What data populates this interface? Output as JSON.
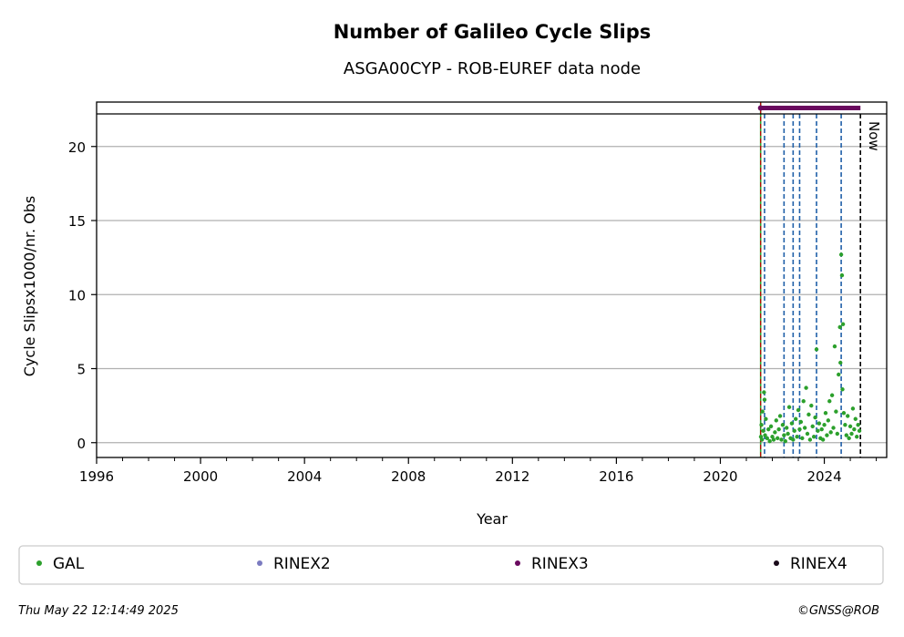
{
  "chart_data": {
    "type": "scatter",
    "title": "Number of Galileo Cycle Slips",
    "subtitle": "ASGA00CYP - ROB-EUREF data node",
    "xlabel": "Year",
    "ylabel": "Cycle Slipsx1000/nr. Obs",
    "xlim": [
      1996,
      2026.4
    ],
    "ylim": [
      -1.0,
      22.2
    ],
    "x_ticks": [
      "1996",
      "2000",
      "2004",
      "2008",
      "2012",
      "2016",
      "2020",
      "2024"
    ],
    "y_ticks": [
      "0",
      "5",
      "10",
      "15",
      "20"
    ],
    "grid": "horizontal",
    "now_label": "Now",
    "now_x": 2025.39,
    "data_start_x": 2021.55,
    "equipment_changes_x": [
      2021.7,
      2022.45,
      2022.8,
      2023.05,
      2023.7,
      2024.65
    ],
    "rinex_bars": [
      {
        "name": "RINEX3",
        "from": 2021.55,
        "to": 2025.39,
        "color": "#6a0a5f"
      }
    ],
    "series": [
      {
        "name": "GAL",
        "color": "#2ca02c",
        "points": [
          [
            2021.56,
            0.4
          ],
          [
            2021.58,
            1.2
          ],
          [
            2021.6,
            0.2
          ],
          [
            2021.62,
            2.1
          ],
          [
            2021.65,
            0.8
          ],
          [
            2021.68,
            3.4
          ],
          [
            2021.7,
            2.9
          ],
          [
            2021.72,
            0.5
          ],
          [
            2021.75,
            1.6
          ],
          [
            2021.8,
            0.3
          ],
          [
            2021.85,
            0.9
          ],
          [
            2021.9,
            0.1
          ],
          [
            2021.95,
            1.1
          ],
          [
            2022.0,
            0.4
          ],
          [
            2022.05,
            0.2
          ],
          [
            2022.1,
            0.7
          ],
          [
            2022.15,
            1.5
          ],
          [
            2022.2,
            0.3
          ],
          [
            2022.25,
            0.9
          ],
          [
            2022.3,
            1.8
          ],
          [
            2022.35,
            0.2
          ],
          [
            2022.4,
            1.2
          ],
          [
            2022.45,
            0.5
          ],
          [
            2022.5,
            0.1
          ],
          [
            2022.55,
            1.0
          ],
          [
            2022.6,
            0.6
          ],
          [
            2022.65,
            2.4
          ],
          [
            2022.7,
            0.3
          ],
          [
            2022.75,
            1.3
          ],
          [
            2022.8,
            0.2
          ],
          [
            2022.85,
            0.8
          ],
          [
            2022.9,
            1.6
          ],
          [
            2022.95,
            0.4
          ],
          [
            2023.0,
            2.2
          ],
          [
            2023.05,
            0.9
          ],
          [
            2023.1,
            1.4
          ],
          [
            2023.15,
            0.3
          ],
          [
            2023.2,
            2.8
          ],
          [
            2023.25,
            1.0
          ],
          [
            2023.3,
            3.7
          ],
          [
            2023.35,
            0.6
          ],
          [
            2023.4,
            1.9
          ],
          [
            2023.45,
            0.2
          ],
          [
            2023.5,
            2.5
          ],
          [
            2023.55,
            1.1
          ],
          [
            2023.6,
            0.4
          ],
          [
            2023.65,
            1.7
          ],
          [
            2023.7,
            6.3
          ],
          [
            2023.75,
            0.8
          ],
          [
            2023.8,
            1.3
          ],
          [
            2023.85,
            0.3
          ],
          [
            2023.9,
            0.9
          ],
          [
            2023.95,
            0.2
          ],
          [
            2024.0,
            1.2
          ],
          [
            2024.05,
            2.0
          ],
          [
            2024.1,
            0.5
          ],
          [
            2024.15,
            1.5
          ],
          [
            2024.2,
            2.8
          ],
          [
            2024.25,
            0.7
          ],
          [
            2024.3,
            3.2
          ],
          [
            2024.35,
            1.0
          ],
          [
            2024.4,
            6.5
          ],
          [
            2024.45,
            2.1
          ],
          [
            2024.5,
            0.6
          ],
          [
            2024.55,
            4.6
          ],
          [
            2024.6,
            7.8
          ],
          [
            2024.62,
            5.4
          ],
          [
            2024.65,
            12.7
          ],
          [
            2024.68,
            11.3
          ],
          [
            2024.7,
            3.6
          ],
          [
            2024.72,
            8.0
          ],
          [
            2024.75,
            2.0
          ],
          [
            2024.8,
            1.2
          ],
          [
            2024.85,
            0.5
          ],
          [
            2024.9,
            1.8
          ],
          [
            2024.95,
            0.3
          ],
          [
            2025.0,
            1.1
          ],
          [
            2025.05,
            0.6
          ],
          [
            2025.1,
            2.3
          ],
          [
            2025.15,
            0.9
          ],
          [
            2025.2,
            1.6
          ],
          [
            2025.25,
            0.4
          ],
          [
            2025.3,
            1.2
          ],
          [
            2025.35,
            0.8
          ]
        ]
      }
    ]
  },
  "legend": {
    "items": [
      {
        "label": "GAL",
        "color": "#2ca02c"
      },
      {
        "label": "RINEX2",
        "color": "#7b7bc0"
      },
      {
        "label": "RINEX3",
        "color": "#6a0a5f"
      },
      {
        "label": "RINEX4",
        "color": "#1a0a1a"
      }
    ]
  },
  "footer": {
    "timestamp": "Thu May 22 12:14:49 2025",
    "credit": "©GNSS@ROB"
  }
}
